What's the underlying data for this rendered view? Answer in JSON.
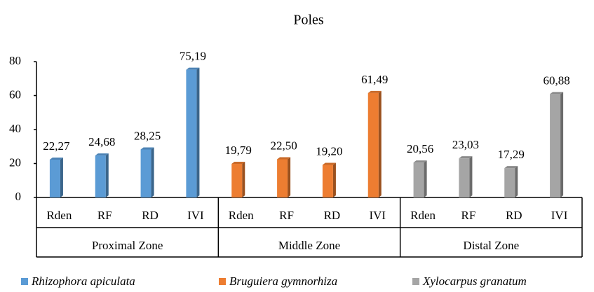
{
  "chart_data": {
    "type": "bar",
    "title": "Poles",
    "categories": [
      "Rden",
      "RF",
      "RD",
      "IVI",
      "Rden",
      "RF",
      "RD",
      "IVI",
      "Rden",
      "RF",
      "RD",
      "IVI"
    ],
    "groups": [
      "Proximal Zone",
      "Middle Zone",
      "Distal Zone"
    ],
    "series": [
      {
        "name": "Rhizophora apiculata",
        "color": "#5b9bd5",
        "values": [
          22.27,
          24.68,
          28.25,
          75.19,
          null,
          null,
          null,
          null,
          null,
          null,
          null,
          null
        ],
        "value_labels": [
          "22,27",
          "24,68",
          "28,25",
          "75,19",
          null,
          null,
          null,
          null,
          null,
          null,
          null,
          null
        ]
      },
      {
        "name": "Bruguiera gymnorhiza",
        "color": "#ed7d31",
        "values": [
          null,
          null,
          null,
          null,
          19.79,
          22.5,
          19.2,
          61.49,
          null,
          null,
          null,
          null
        ],
        "value_labels": [
          null,
          null,
          null,
          null,
          "19,79",
          "22,50",
          "19,20",
          "61,49",
          null,
          null,
          null,
          null
        ]
      },
      {
        "name": "Xylocarpus granatum",
        "color": "#a5a5a5",
        "values": [
          null,
          null,
          null,
          null,
          null,
          null,
          null,
          null,
          20.56,
          23.03,
          17.29,
          60.88
        ],
        "value_labels": [
          null,
          null,
          null,
          null,
          null,
          null,
          null,
          null,
          "20,56",
          "23,03",
          "17,29",
          "60,88"
        ]
      }
    ],
    "ylim": [
      0,
      80
    ],
    "yticks": [
      0,
      20,
      40,
      60,
      80
    ],
    "grid": false
  }
}
